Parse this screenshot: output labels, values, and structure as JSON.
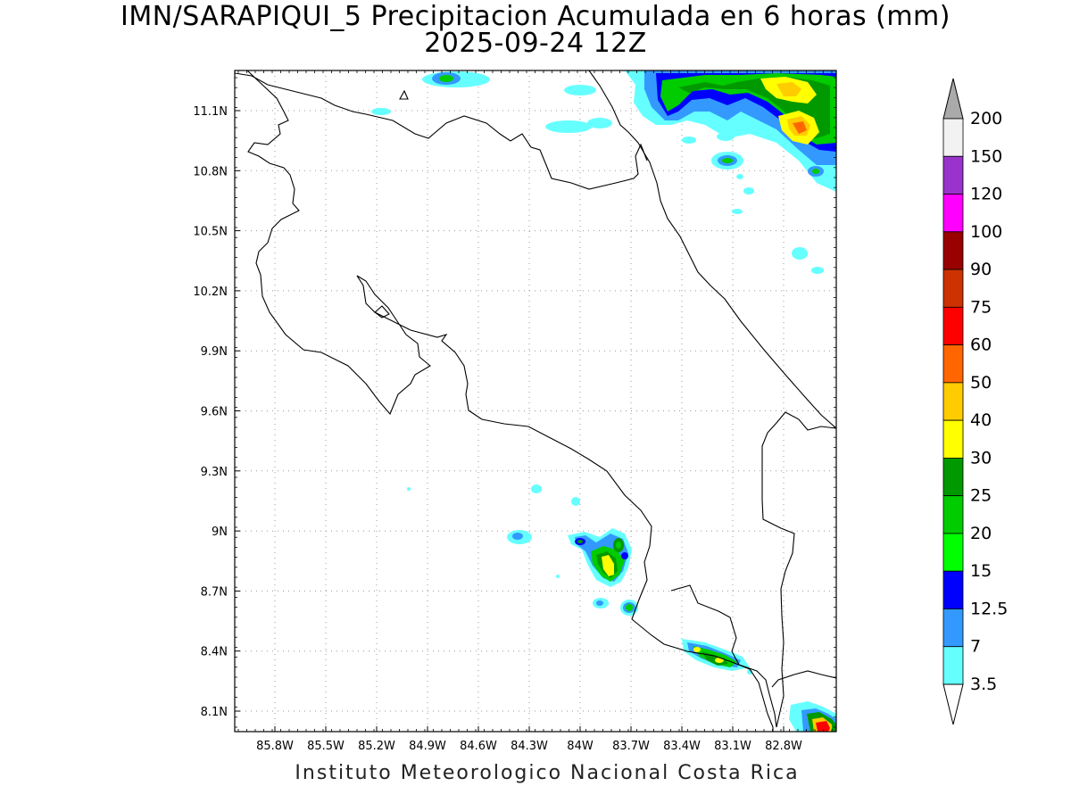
{
  "title": {
    "line1": "IMN/SARAPIQUI_5 Precipitacion Acumulada en 6 horas (mm)",
    "line2": "2025-09-24 12Z"
  },
  "footer": "Instituto Meteorologico Nacional Costa Rica",
  "map": {
    "lon_labels": [
      "85.8W",
      "85.5W",
      "85.2W",
      "84.9W",
      "84.6W",
      "84.3W",
      "84W",
      "83.7W",
      "83.4W",
      "83.1W",
      "82.8W"
    ],
    "lat_labels": [
      "11.1N",
      "10.8N",
      "10.5N",
      "10.2N",
      "9.9N",
      "9.6N",
      "9.3N",
      "9N",
      "8.7N",
      "8.4N",
      "8.1N"
    ],
    "grid": "dotted"
  },
  "colorbar": {
    "labels": [
      "200",
      "150",
      "120",
      "100",
      "90",
      "75",
      "60",
      "50",
      "40",
      "30",
      "25",
      "20",
      "15",
      "12.5",
      "7",
      "3.5"
    ],
    "colors": [
      "#f2f2f2",
      "#9933cc",
      "#ff00ff",
      "#990000",
      "#cc3300",
      "#ff0000",
      "#ff6600",
      "#ffcc00",
      "#ffff00",
      "#009900",
      "#00cc00",
      "#00ff00",
      "#0000ff",
      "#3399ff",
      "#66ffff"
    ],
    "top_arrow_color": "#aaaaaa",
    "bottom_arrow_color": "#ffffff"
  }
}
